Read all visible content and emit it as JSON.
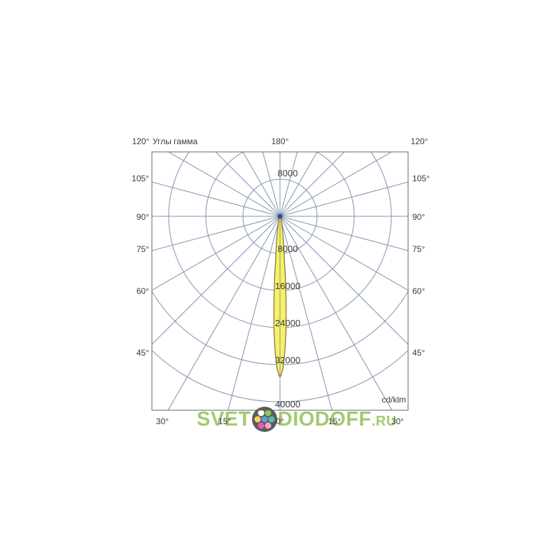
{
  "page": {
    "background": "#ffffff"
  },
  "chart": {
    "title": "Углы гамма",
    "unit_label": "cd/klm",
    "top_labels": {
      "left": "120°",
      "center": "180°",
      "right": "120°"
    },
    "side_labels": [
      "105°",
      "90°",
      "75°",
      "60°",
      "45°"
    ],
    "bottom_labels": [
      "30°",
      "15°",
      "0°",
      "15°",
      "30°"
    ],
    "ring_value_labels": [
      "8000",
      "8000",
      "16000",
      "24000",
      "32000",
      "40000"
    ]
  },
  "chart_data": {
    "type": "polar_intensity_distribution",
    "title": "Углы гамма",
    "unit": "cd/klm",
    "angle_convention": "gamma angle, 0° pointing straight down, 180° straight up",
    "spoke_step_deg": 15,
    "ring_step_value": 8000,
    "rings": [
      8000,
      16000,
      24000,
      32000,
      40000
    ],
    "angle_axis_labels_top": [
      "120°",
      "180°",
      "120°"
    ],
    "angle_axis_labels_sides": [
      "105°",
      "90°",
      "75°",
      "60°",
      "45°"
    ],
    "angle_axis_labels_bottom": [
      "30°",
      "15°",
      "0°",
      "15°",
      "30°"
    ],
    "series": [
      {
        "name": "luminous-intensity-curve",
        "peak_value_cd_klm": 34800,
        "peak_angle_deg": 0,
        "profile_deg_value": [
          [
            0,
            34800
          ],
          [
            1,
            33200
          ],
          [
            2,
            29500
          ],
          [
            3,
            24800
          ],
          [
            4,
            19000
          ],
          [
            5,
            13500
          ],
          [
            6,
            8500
          ],
          [
            7,
            7000
          ],
          [
            8,
            5200
          ],
          [
            10,
            3200
          ],
          [
            12,
            2200
          ],
          [
            15,
            1400
          ],
          [
            20,
            700
          ],
          [
            25,
            400
          ],
          [
            30,
            250
          ]
        ]
      }
    ],
    "colors": {
      "grid": "#8191ad",
      "border": "#666666",
      "beam_fill": "#f6f263",
      "beam_stroke": "#8a6a3a",
      "center_dot": "#2e4f86",
      "label_text": "#3a3a3a"
    }
  },
  "watermark": {
    "prefix": "SVET",
    "suffix": "DIODOFF",
    "tld": ".RU",
    "color": "#96c35c",
    "logo": {
      "ring_color": "#454545",
      "center_dot_color": "#4a8fd4",
      "petal_dot_colors": [
        "#3fb5a8",
        "#f59bbf",
        "#e743b0",
        "#f2d13e",
        "#ffffff",
        "#7dc242"
      ]
    }
  }
}
